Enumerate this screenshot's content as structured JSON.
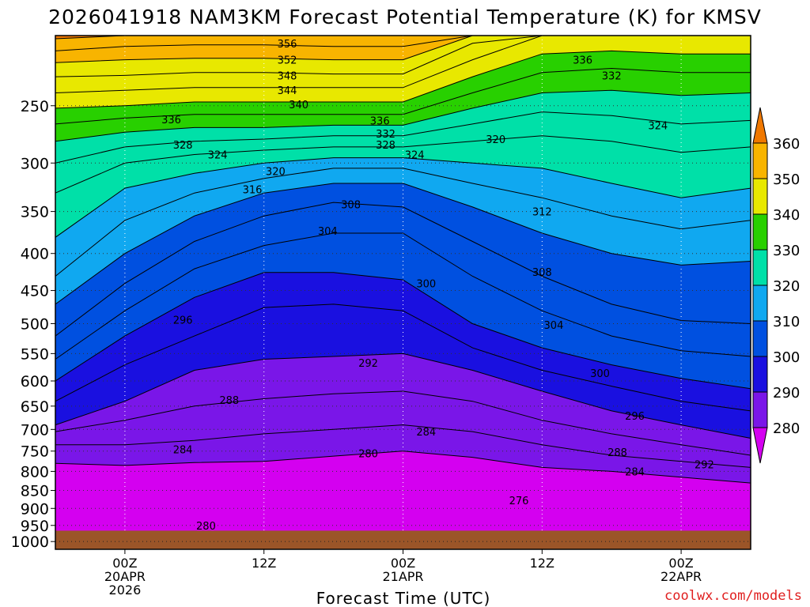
{
  "chart_data": {
    "type": "heatmap",
    "title": "2026041918 NAM3KM Forecast Potential Temperature (K) for KMSV",
    "xlabel": "Forecast Time (UTC)",
    "ylabel": "",
    "credit": "coolwx.com/models",
    "y_ticks": [
      250,
      300,
      350,
      400,
      450,
      500,
      550,
      600,
      650,
      700,
      750,
      800,
      850,
      900,
      950,
      1000
    ],
    "x_ticks": [
      {
        "hour": 6,
        "label1": "00Z",
        "label2": "20APR",
        "label3": "2026"
      },
      {
        "hour": 18,
        "label1": "12Z",
        "label2": "",
        "label3": ""
      },
      {
        "hour": 30,
        "label1": "00Z",
        "label2": "21APR",
        "label3": ""
      },
      {
        "hour": 42,
        "label1": "12Z",
        "label2": "",
        "label3": ""
      },
      {
        "hour": 54,
        "label1": "00Z",
        "label2": "22APR",
        "label3": ""
      }
    ],
    "x_range_hours": [
      0,
      60
    ],
    "y_range_hpa": [
      200,
      1025
    ],
    "colorbar_ticks": [
      280,
      290,
      300,
      310,
      320,
      330,
      340,
      350,
      360
    ],
    "colorbar_colors": [
      "#d400f0",
      "#7a16e8",
      "#1a10e0",
      "#0050e0",
      "#10a8f0",
      "#00e0a8",
      "#28d000",
      "#e8e800",
      "#f8b400",
      "#f07800"
    ],
    "contours": [
      {
        "theta": 280,
        "label": "280",
        "points": [
          [
            0,
            780
          ],
          [
            6,
            785
          ],
          [
            12,
            778
          ],
          [
            18,
            775
          ],
          [
            24,
            762
          ],
          [
            30,
            750
          ],
          [
            36,
            765
          ],
          [
            42,
            790
          ],
          [
            48,
            800
          ],
          [
            54,
            815
          ],
          [
            60,
            830
          ]
        ]
      },
      {
        "theta": 284,
        "label": "284",
        "points": [
          [
            0,
            735
          ],
          [
            6,
            735
          ],
          [
            12,
            725
          ],
          [
            18,
            710
          ],
          [
            24,
            700
          ],
          [
            30,
            690
          ],
          [
            36,
            705
          ],
          [
            42,
            735
          ],
          [
            48,
            760
          ],
          [
            54,
            775
          ],
          [
            60,
            790
          ]
        ]
      },
      {
        "theta": 288,
        "label": "288",
        "points": [
          [
            0,
            705
          ],
          [
            6,
            680
          ],
          [
            12,
            650
          ],
          [
            18,
            635
          ],
          [
            24,
            625
          ],
          [
            30,
            620
          ],
          [
            36,
            640
          ],
          [
            42,
            680
          ],
          [
            48,
            710
          ],
          [
            54,
            735
          ],
          [
            60,
            760
          ]
        ]
      },
      {
        "theta": 292,
        "label": "292",
        "points": [
          [
            0,
            690
          ],
          [
            6,
            640
          ],
          [
            12,
            580
          ],
          [
            18,
            560
          ],
          [
            24,
            555
          ],
          [
            30,
            550
          ],
          [
            36,
            580
          ],
          [
            42,
            620
          ],
          [
            48,
            660
          ],
          [
            54,
            690
          ],
          [
            60,
            720
          ]
        ]
      },
      {
        "theta": 296,
        "label": "296",
        "points": [
          [
            0,
            640
          ],
          [
            6,
            570
          ],
          [
            12,
            520
          ],
          [
            18,
            475
          ],
          [
            24,
            470
          ],
          [
            30,
            480
          ],
          [
            36,
            540
          ],
          [
            42,
            580
          ],
          [
            48,
            610
          ],
          [
            54,
            640
          ],
          [
            60,
            660
          ]
        ]
      },
      {
        "theta": 300,
        "label": "300",
        "points": [
          [
            0,
            600
          ],
          [
            6,
            520
          ],
          [
            12,
            460
          ],
          [
            18,
            425
          ],
          [
            24,
            425
          ],
          [
            30,
            435
          ],
          [
            36,
            500
          ],
          [
            42,
            540
          ],
          [
            48,
            570
          ],
          [
            54,
            595
          ],
          [
            60,
            615
          ]
        ]
      },
      {
        "theta": 304,
        "label": "304",
        "points": [
          [
            0,
            560
          ],
          [
            6,
            480
          ],
          [
            12,
            420
          ],
          [
            18,
            390
          ],
          [
            24,
            375
          ],
          [
            30,
            375
          ],
          [
            36,
            430
          ],
          [
            42,
            480
          ],
          [
            48,
            520
          ],
          [
            54,
            545
          ],
          [
            60,
            555
          ]
        ]
      },
      {
        "theta": 308,
        "label": "308",
        "points": [
          [
            0,
            520
          ],
          [
            6,
            440
          ],
          [
            12,
            385
          ],
          [
            18,
            355
          ],
          [
            24,
            340
          ],
          [
            30,
            345
          ],
          [
            36,
            385
          ],
          [
            42,
            430
          ],
          [
            48,
            470
          ],
          [
            54,
            495
          ],
          [
            60,
            500
          ]
        ]
      },
      {
        "theta": 312,
        "label": "312",
        "points": [
          [
            0,
            470
          ],
          [
            6,
            400
          ],
          [
            12,
            355
          ],
          [
            18,
            330
          ],
          [
            24,
            320
          ],
          [
            30,
            320
          ],
          [
            36,
            345
          ],
          [
            42,
            375
          ],
          [
            48,
            400
          ],
          [
            54,
            415
          ],
          [
            60,
            410
          ]
        ]
      },
      {
        "theta": 316,
        "label": "316",
        "points": [
          [
            0,
            430
          ],
          [
            6,
            360
          ],
          [
            12,
            330
          ],
          [
            18,
            315
          ],
          [
            24,
            305
          ],
          [
            30,
            305
          ],
          [
            36,
            320
          ],
          [
            42,
            335
          ],
          [
            48,
            355
          ],
          [
            54,
            370
          ],
          [
            60,
            360
          ]
        ]
      },
      {
        "theta": 320,
        "label": "320",
        "points": [
          [
            0,
            380
          ],
          [
            6,
            325
          ],
          [
            12,
            310
          ],
          [
            18,
            300
          ],
          [
            24,
            295
          ],
          [
            30,
            295
          ],
          [
            36,
            300
          ],
          [
            42,
            305
          ],
          [
            48,
            320
          ],
          [
            54,
            335
          ],
          [
            60,
            325
          ]
        ]
      },
      {
        "theta": 324,
        "label": "324",
        "points": [
          [
            0,
            330
          ],
          [
            6,
            300
          ],
          [
            12,
            292
          ],
          [
            18,
            288
          ],
          [
            24,
            285
          ],
          [
            30,
            285
          ],
          [
            36,
            280
          ],
          [
            42,
            275
          ],
          [
            48,
            280
          ],
          [
            54,
            290
          ],
          [
            60,
            285
          ]
        ]
      },
      {
        "theta": 328,
        "label": "328",
        "points": [
          [
            0,
            300
          ],
          [
            6,
            285
          ],
          [
            12,
            280
          ],
          [
            18,
            278
          ],
          [
            24,
            275
          ],
          [
            30,
            275
          ],
          [
            36,
            265
          ],
          [
            42,
            255
          ],
          [
            48,
            258
          ],
          [
            54,
            265
          ],
          [
            60,
            262
          ]
        ]
      },
      {
        "theta": 332,
        "label": "332",
        "points": [
          [
            0,
            280
          ],
          [
            6,
            272
          ],
          [
            12,
            268
          ],
          [
            18,
            268
          ],
          [
            24,
            266
          ],
          [
            30,
            266
          ],
          [
            36,
            252
          ],
          [
            42,
            240
          ],
          [
            48,
            238
          ],
          [
            54,
            242
          ],
          [
            60,
            240
          ]
        ]
      },
      {
        "theta": 336,
        "label": "336",
        "points": [
          [
            0,
            265
          ],
          [
            6,
            260
          ],
          [
            12,
            257
          ],
          [
            18,
            257
          ],
          [
            24,
            257
          ],
          [
            30,
            257
          ],
          [
            36,
            240
          ],
          [
            42,
            225
          ],
          [
            48,
            222
          ],
          [
            54,
            225
          ],
          [
            60,
            225
          ]
        ]
      },
      {
        "theta": 340,
        "label": "340",
        "points": [
          [
            0,
            252
          ],
          [
            6,
            250
          ],
          [
            12,
            247
          ],
          [
            18,
            247
          ],
          [
            24,
            247
          ],
          [
            30,
            247
          ],
          [
            36,
            228
          ],
          [
            42,
            212
          ],
          [
            48,
            210
          ],
          [
            54,
            212
          ],
          [
            60,
            212
          ]
        ]
      },
      {
        "theta": 344,
        "label": "344",
        "points": [
          [
            0,
            240
          ],
          [
            6,
            238
          ],
          [
            12,
            236
          ],
          [
            18,
            236
          ],
          [
            24,
            236
          ],
          [
            30,
            236
          ],
          [
            36,
            216
          ],
          [
            42,
            200
          ],
          [
            48,
            200
          ],
          [
            54,
            200
          ],
          [
            60,
            200
          ]
        ]
      },
      {
        "theta": 348,
        "label": "348",
        "points": [
          [
            0,
            228
          ],
          [
            6,
            227
          ],
          [
            12,
            225
          ],
          [
            18,
            225
          ],
          [
            24,
            226
          ],
          [
            30,
            226
          ],
          [
            36,
            205
          ],
          [
            42,
            200
          ],
          [
            48,
            200
          ],
          [
            54,
            200
          ],
          [
            60,
            200
          ]
        ]
      },
      {
        "theta": 352,
        "label": "352",
        "points": [
          [
            0,
            218
          ],
          [
            6,
            216
          ],
          [
            12,
            215
          ],
          [
            18,
            215
          ],
          [
            24,
            216
          ],
          [
            30,
            216
          ],
          [
            36,
            200
          ],
          [
            42,
            200
          ],
          [
            48,
            200
          ],
          [
            54,
            200
          ],
          [
            60,
            200
          ]
        ]
      },
      {
        "theta": 356,
        "label": "356",
        "points": [
          [
            0,
            210
          ],
          [
            6,
            207
          ],
          [
            12,
            206
          ],
          [
            18,
            206
          ],
          [
            24,
            207
          ],
          [
            30,
            207
          ],
          [
            36,
            200
          ],
          [
            42,
            200
          ],
          [
            48,
            200
          ],
          [
            54,
            200
          ],
          [
            60,
            200
          ]
        ]
      },
      {
        "theta": 360,
        "label": "",
        "points": [
          [
            0,
            202
          ],
          [
            6,
            200
          ],
          [
            12,
            200
          ],
          [
            18,
            200
          ],
          [
            24,
            200
          ],
          [
            30,
            200
          ],
          [
            36,
            200
          ],
          [
            42,
            200
          ],
          [
            48,
            200
          ],
          [
            54,
            200
          ],
          [
            60,
            200
          ]
        ]
      }
    ],
    "contour_labels": [
      {
        "text": "356",
        "hour": 20,
        "hpa": 205
      },
      {
        "text": "352",
        "hour": 20,
        "hpa": 216
      },
      {
        "text": "348",
        "hour": 20,
        "hpa": 227
      },
      {
        "text": "344",
        "hour": 20,
        "hpa": 238
      },
      {
        "text": "340",
        "hour": 21,
        "hpa": 249
      },
      {
        "text": "336",
        "hour": 10,
        "hpa": 261
      },
      {
        "text": "332",
        "hour": 48,
        "hpa": 227
      },
      {
        "text": "336",
        "hour": 45.5,
        "hpa": 216
      },
      {
        "text": "336",
        "hour": 28,
        "hpa": 262
      },
      {
        "text": "332",
        "hour": 28.5,
        "hpa": 273
      },
      {
        "text": "328",
        "hour": 28.5,
        "hpa": 283
      },
      {
        "text": "324",
        "hour": 31,
        "hpa": 292
      },
      {
        "text": "328",
        "hour": 11,
        "hpa": 283
      },
      {
        "text": "324",
        "hour": 14,
        "hpa": 292
      },
      {
        "text": "320",
        "hour": 38,
        "hpa": 278
      },
      {
        "text": "324",
        "hour": 52,
        "hpa": 266
      },
      {
        "text": "320",
        "hour": 19,
        "hpa": 308
      },
      {
        "text": "316",
        "hour": 17,
        "hpa": 326
      },
      {
        "text": "308",
        "hour": 25.5,
        "hpa": 342
      },
      {
        "text": "304",
        "hour": 23.5,
        "hpa": 372
      },
      {
        "text": "312",
        "hour": 42,
        "hpa": 350
      },
      {
        "text": "308",
        "hour": 42,
        "hpa": 424
      },
      {
        "text": "300",
        "hour": 32,
        "hpa": 440
      },
      {
        "text": "296",
        "hour": 11,
        "hpa": 494
      },
      {
        "text": "304",
        "hour": 43,
        "hpa": 502
      },
      {
        "text": "292",
        "hour": 27,
        "hpa": 566
      },
      {
        "text": "300",
        "hour": 47,
        "hpa": 585
      },
      {
        "text": "288",
        "hour": 15,
        "hpa": 637
      },
      {
        "text": "296",
        "hour": 50,
        "hpa": 670
      },
      {
        "text": "284",
        "hour": 32,
        "hpa": 705
      },
      {
        "text": "284",
        "hour": 11,
        "hpa": 746
      },
      {
        "text": "280",
        "hour": 27,
        "hpa": 755
      },
      {
        "text": "288",
        "hour": 48.5,
        "hpa": 752
      },
      {
        "text": "292",
        "hour": 56,
        "hpa": 782
      },
      {
        "text": "284",
        "hour": 50,
        "hpa": 800
      },
      {
        "text": "276",
        "hour": 40,
        "hpa": 877
      },
      {
        "text": "280",
        "hour": 13,
        "hpa": 950
      }
    ],
    "ground_color": "#9b5528",
    "ground_hpa": 966
  }
}
